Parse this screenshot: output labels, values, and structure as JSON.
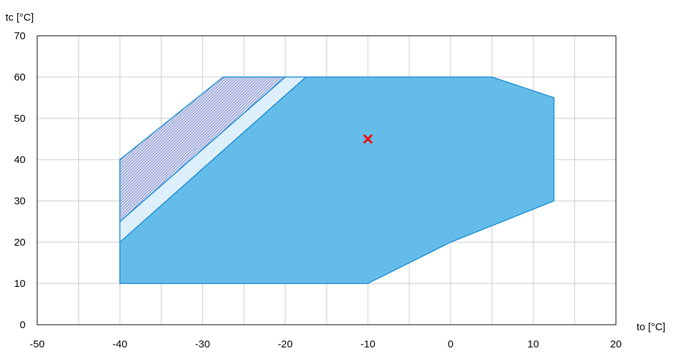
{
  "chart_data": {
    "type": "area",
    "title": "",
    "xlabel": "to [°C]",
    "ylabel": "tc [°C]",
    "xlim": [
      -50,
      20
    ],
    "ylim": [
      0,
      70
    ],
    "x_ticks": [
      -50,
      -40,
      -30,
      -20,
      -10,
      0,
      10,
      20
    ],
    "y_ticks": [
      0,
      10,
      20,
      30,
      40,
      50,
      60,
      70
    ],
    "x_tick_labels": [
      "-50",
      "-40",
      "-30",
      "-20",
      "-10",
      "0",
      "10",
      "20"
    ],
    "y_tick_labels": [
      "0",
      "10",
      "20",
      "30",
      "40",
      "50",
      "60",
      "70"
    ],
    "grid": true,
    "grid_x_step": 5,
    "grid_y_step": 10,
    "regions": [
      {
        "polygon": [
          [
            -40,
            10
          ],
          [
            -10,
            10
          ],
          [
            0,
            20
          ],
          [
            12.5,
            30
          ],
          [
            12.5,
            55
          ],
          [
            5,
            60
          ],
          [
            -17.5,
            60
          ],
          [
            -40,
            20
          ]
        ],
        "color": "#64bde9",
        "pattern": "solid"
      },
      {
        "polygon": [
          [
            -40,
            20
          ],
          [
            -17.5,
            60
          ],
          [
            -20,
            60
          ],
          [
            -40,
            25
          ]
        ],
        "color": "#ddeffb",
        "pattern": "solid"
      },
      {
        "polygon": [
          [
            -40,
            25
          ],
          [
            -20,
            60
          ],
          [
            -27.5,
            60
          ],
          [
            -40,
            40
          ]
        ],
        "color": "#8f9bd3",
        "pattern": "hatched"
      }
    ],
    "marker": {
      "x": -10,
      "y": 45,
      "symbol": "cross",
      "color": "#ff0000"
    },
    "outline_color": "#1f8fd4"
  }
}
